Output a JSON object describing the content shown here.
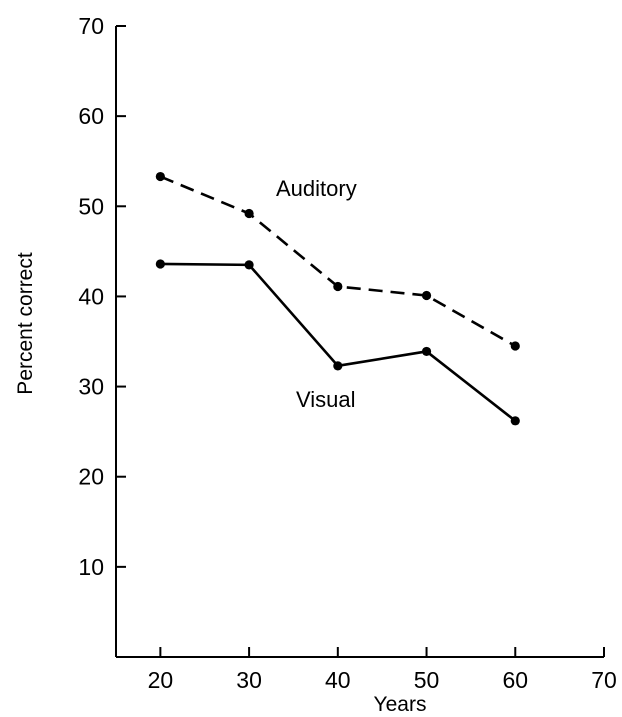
{
  "chart_data": {
    "type": "line",
    "title": "",
    "xlabel": "Years",
    "ylabel": "Percent correct",
    "xlim": [
      15,
      70
    ],
    "ylim": [
      0,
      70
    ],
    "xticks": [
      20,
      30,
      40,
      50,
      60,
      70
    ],
    "yticks": [
      10,
      20,
      30,
      40,
      50,
      60,
      70
    ],
    "xtick_labels": [
      "20",
      "30",
      "40",
      "50",
      "60",
      "70"
    ],
    "ytick_labels": [
      "10",
      "20",
      "30",
      "40",
      "50",
      "60",
      "70"
    ],
    "grid": false,
    "series": [
      {
        "name": "Auditory",
        "style": "dashed",
        "color": "#000000",
        "x": [
          20,
          30,
          40,
          50,
          60
        ],
        "y": [
          53.3,
          49.2,
          41.1,
          40.1,
          34.5
        ]
      },
      {
        "name": "Visual",
        "style": "solid",
        "color": "#000000",
        "x": [
          20,
          30,
          40,
          50,
          60
        ],
        "y": [
          43.6,
          43.5,
          32.3,
          33.9,
          26.2
        ]
      }
    ],
    "annotations": [
      {
        "text": "Auditory",
        "series": 0
      },
      {
        "text": "Visual",
        "series": 1
      }
    ]
  }
}
